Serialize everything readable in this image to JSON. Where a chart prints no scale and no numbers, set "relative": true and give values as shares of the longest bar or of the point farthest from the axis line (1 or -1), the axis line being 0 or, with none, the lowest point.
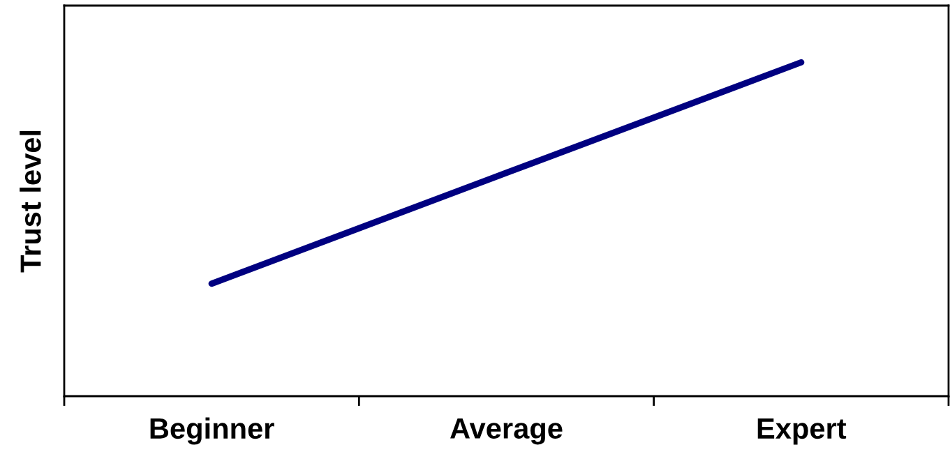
{
  "chart_data": {
    "type": "line",
    "ylabel": "Trust level",
    "categories": [
      "Beginner",
      "Average",
      "Expert"
    ],
    "relative": true,
    "series": [
      {
        "color": "#000080",
        "values": [
          0.337,
          0.669,
          1
        ]
      }
    ],
    "grid": false,
    "marker": "none",
    "line_style": "solid"
  }
}
